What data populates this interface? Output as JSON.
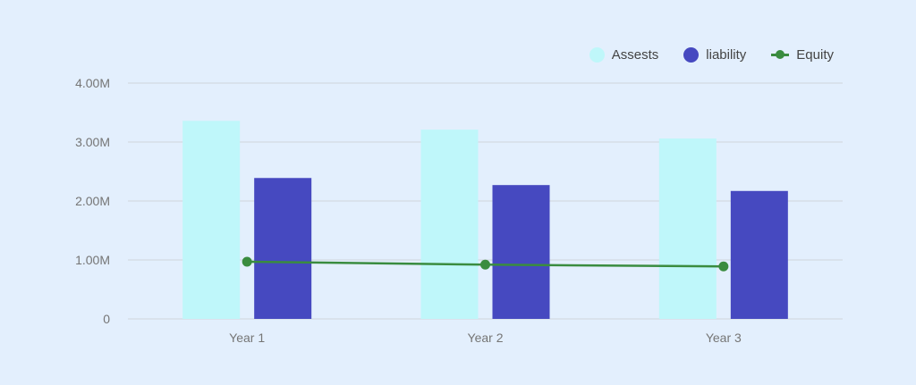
{
  "chart_data": {
    "type": "bar",
    "title": "",
    "xlabel": "",
    "ylabel": "",
    "categories": [
      "Year 1",
      "Year 2",
      "Year 3"
    ],
    "ylim": [
      0,
      4000000
    ],
    "yticks": [
      0,
      1000000,
      2000000,
      3000000,
      4000000
    ],
    "ytick_labels": [
      "0",
      "1.00M",
      "2.00M",
      "3.00M",
      "4.00M"
    ],
    "grid": true,
    "legend_position": "top-right",
    "series": [
      {
        "name": "Assests",
        "type": "bar",
        "color": "#bff7fa",
        "values": [
          3360000,
          3210000,
          3060000
        ]
      },
      {
        "name": "liability",
        "type": "bar",
        "color": "#4649c0",
        "values": [
          2390000,
          2270000,
          2170000
        ]
      },
      {
        "name": "Equity",
        "type": "line",
        "color": "#3a8c3f",
        "values": [
          970000,
          920000,
          890000
        ]
      }
    ]
  },
  "colors": {
    "background": "#e3effd",
    "grid": "#d6dde6",
    "tick_text": "#757575"
  }
}
